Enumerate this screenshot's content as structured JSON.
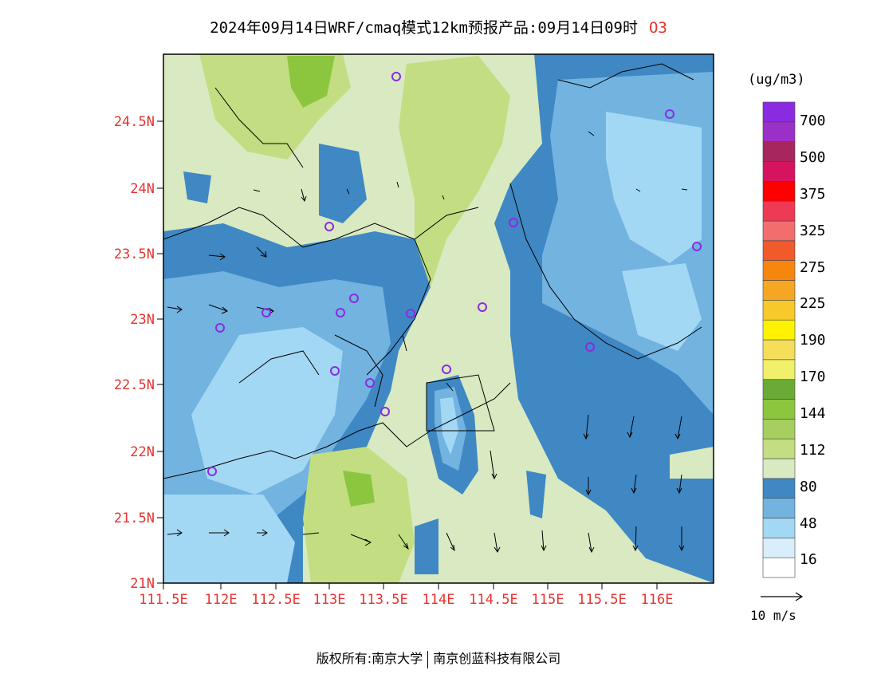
{
  "title": {
    "text": "2024年09月14日WRF/cmaq模式12km预报产品:09月14日09时",
    "species": "O3"
  },
  "colorbar": {
    "units": "(ug/m3)",
    "colors": [
      "#ffffff",
      "#d8eefa",
      "#a3d8f5",
      "#72b3e0",
      "#3f88c4",
      "#d9e9c1",
      "#c3dd82",
      "#a6cf5f",
      "#8cc63f",
      "#6aab36",
      "#f1f06b",
      "#f5df5a",
      "#fef200",
      "#f7c92a",
      "#f5a623",
      "#f7860f",
      "#f15a2a",
      "#f26d6d",
      "#ef3a55",
      "#ff0000",
      "#d6145e",
      "#a8265e",
      "#9b30c8",
      "#8a2be2"
    ],
    "labels": [
      "16",
      "48",
      "80",
      "112",
      "144",
      "170",
      "190",
      "225",
      "275",
      "325",
      "375",
      "500",
      "700"
    ]
  },
  "axes": {
    "lat_labels": [
      "24.5N",
      "24N",
      "23.5N",
      "23N",
      "22.5N",
      "22N",
      "21.5N",
      "21N"
    ],
    "lon_labels": [
      "111.5E",
      "112E",
      "112.5E",
      "113E",
      "113.5E",
      "114E",
      "114.5E",
      "115E",
      "115.5E",
      "116E"
    ]
  },
  "wind_reference": {
    "label": "10 m/s"
  },
  "footer": {
    "left": "版权所有:南京大学",
    "right": "南京创蓝科技有限公司"
  }
}
